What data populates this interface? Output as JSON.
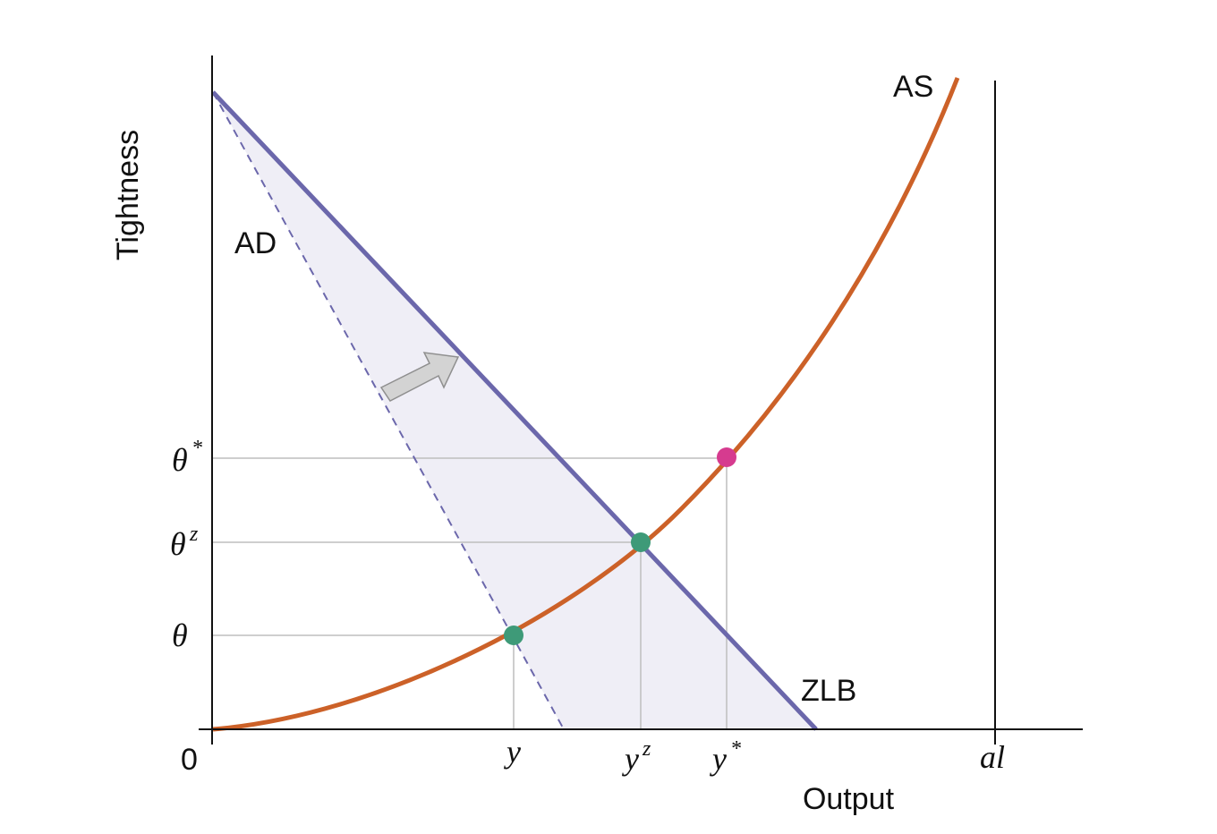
{
  "labels": {
    "y_axis_title": "Tightness",
    "x_axis_title": "Output",
    "origin": "0",
    "ad_curve": "AD",
    "as_curve": "AS",
    "zlb_curve": "ZLB"
  },
  "ticks": {
    "y": [
      {
        "base": "θ",
        "sup": "*"
      },
      {
        "base": "θ",
        "sup": "z"
      },
      {
        "base": "θ",
        "sup": ""
      }
    ],
    "x": [
      {
        "base": "y",
        "sup": ""
      },
      {
        "base": "y",
        "sup": "z"
      },
      {
        "base": "y",
        "sup": "*"
      },
      {
        "base": "al",
        "sup": ""
      }
    ]
  },
  "points": [
    {
      "name": "equilibrium-low",
      "color": "#3e9a78"
    },
    {
      "name": "equilibrium-zlb",
      "color": "#3e9a78"
    },
    {
      "name": "efficient-point",
      "color": "#d63b8f"
    }
  ],
  "colors": {
    "as_curve": "#cc6128",
    "ad_curve": "#6b67ab",
    "shaded_region": "#efeef6",
    "guide_lines": "#bdbdbd",
    "arrow_fill": "#d3d3d3",
    "arrow_stroke": "#8f8f8f",
    "axes": "#111111"
  }
}
